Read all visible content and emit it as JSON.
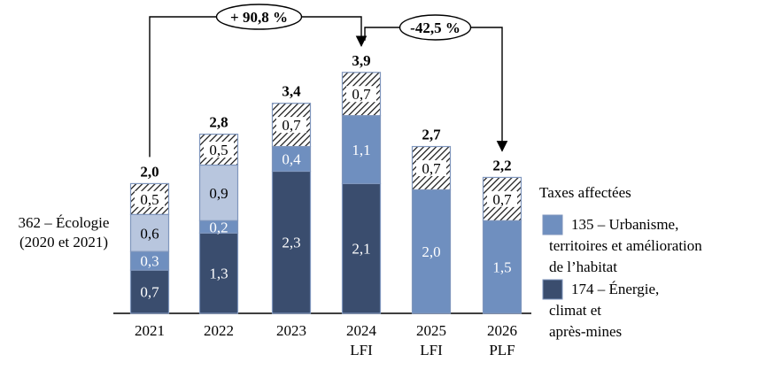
{
  "chart_data": {
    "type": "bar",
    "stacked": true,
    "categories": [
      "2021",
      "2022",
      "2023",
      "2024",
      "2025",
      "2026"
    ],
    "category_sublabels": [
      "",
      "",
      "",
      "LFI",
      "LFI",
      "PLF"
    ],
    "series": [
      {
        "name": "174 – Énergie, climat et après-mines",
        "color": "#3a4d6e",
        "values": [
          0.7,
          1.3,
          2.3,
          2.1,
          0,
          0
        ],
        "labels": [
          "0,7",
          "1,3",
          "2,3",
          "2,1",
          "",
          ""
        ]
      },
      {
        "name": "135 – Urbanisme, territoires et amélioration de l’habitat",
        "color": "#6f8fbf",
        "values": [
          0.3,
          0.2,
          0.4,
          1.1,
          2.0,
          1.5
        ],
        "labels": [
          "0,3",
          "0,2",
          "0,4",
          "1,1",
          "2,0",
          "1,5"
        ]
      },
      {
        "name": "362 – Écologie (2020 et 2021)",
        "color": "#b8c6de",
        "values": [
          0.6,
          0.9,
          0,
          0,
          0,
          0
        ],
        "labels": [
          "0,6",
          "0,9",
          "",
          "",
          "",
          ""
        ]
      },
      {
        "name": "Taxes affectées",
        "color": "hatch",
        "values": [
          0.5,
          0.5,
          0.7,
          0.7,
          0.7,
          0.7
        ],
        "labels": [
          "0,5",
          "0,5",
          "0,7",
          "0,7",
          "0,7",
          "0,7"
        ]
      }
    ],
    "totals": [
      "2,0",
      "2,8",
      "3,4",
      "3,9",
      "2,7",
      "2,2"
    ],
    "ylim": [
      0,
      4.0
    ],
    "grid": false,
    "annotations": [
      {
        "text": "+ 90,8 %",
        "from": "2021",
        "to": "2024"
      },
      {
        "text": "-42,5 %",
        "from": "2024",
        "to": "2026"
      }
    ],
    "side_label": [
      "362 – Écologie",
      "(2020 et 2021)"
    ],
    "legend": {
      "placement": "right",
      "title": "Taxes affectées",
      "items": [
        {
          "lines": [
            "135 – Urbanisme,",
            "territoires et amélioration",
            "de l’habitat"
          ],
          "color": "#6f8fbf"
        },
        {
          "lines": [
            "174 – Énergie,",
            "climat et",
            "après-mines"
          ],
          "color": "#3a4d6e"
        }
      ]
    }
  }
}
